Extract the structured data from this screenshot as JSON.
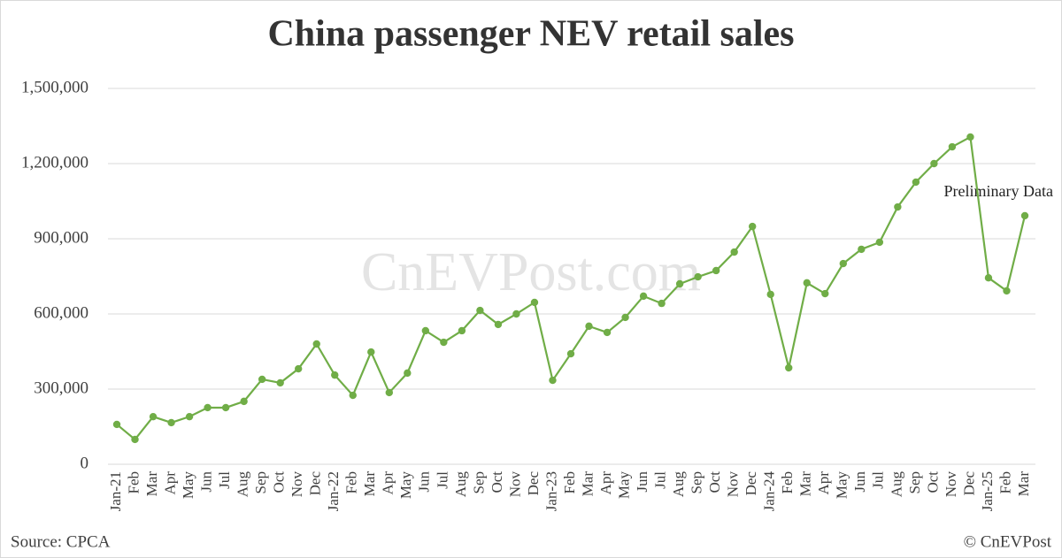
{
  "chart_data": {
    "type": "line",
    "title": "China passenger NEV retail sales",
    "watermark": "CnEVPost.com",
    "source": "Source: CPCA",
    "copyright": "© CnEVPost",
    "annotation": "Preliminary Data",
    "categories": [
      "Jan-21",
      "Feb",
      "Mar",
      "Apr",
      "May",
      "Jun",
      "Jul",
      "Aug",
      "Sep",
      "Oct",
      "Nov",
      "Dec",
      "Jan-22",
      "Feb",
      "Mar",
      "Apr",
      "May",
      "Jun",
      "Jul",
      "Aug",
      "Sep",
      "Oct",
      "Nov",
      "Dec",
      "Jan-23",
      "Feb",
      "Mar",
      "Apr",
      "May",
      "Jun",
      "Jul",
      "Aug",
      "Sep",
      "Oct",
      "Nov",
      "Dec",
      "Jan-24",
      "Feb",
      "Mar",
      "Apr",
      "May",
      "Jun",
      "Jul",
      "Aug",
      "Sep",
      "Oct",
      "Nov",
      "Dec",
      "Jan-25",
      "Feb",
      "Mar"
    ],
    "series": [
      {
        "name": "Retail sales",
        "color": "#70ad47",
        "values": [
          159000,
          99000,
          190000,
          166000,
          190000,
          226000,
          226000,
          251000,
          339000,
          325000,
          381000,
          480000,
          356000,
          275000,
          448000,
          286000,
          364000,
          533000,
          487000,
          533000,
          614000,
          558000,
          600000,
          646000,
          335000,
          441000,
          551000,
          526000,
          586000,
          671000,
          642000,
          720000,
          748000,
          773000,
          847000,
          949000,
          678000,
          385000,
          724000,
          681000,
          801000,
          858000,
          886000,
          1027000,
          1126000,
          1200000,
          1267000,
          1306000,
          744000,
          692000,
          992000
        ]
      }
    ],
    "ylim": [
      0,
      1500000
    ],
    "yticks": [
      0,
      {
        "value": 300000,
        "label": "300,000"
      },
      {
        "value": 600000,
        "label": "600,000"
      },
      {
        "value": 900000,
        "label": "900,000"
      },
      {
        "value": 1200000,
        "label": "1,200,000"
      },
      {
        "value": 1500000,
        "label": "1,500,000"
      }
    ],
    "grid": true
  }
}
